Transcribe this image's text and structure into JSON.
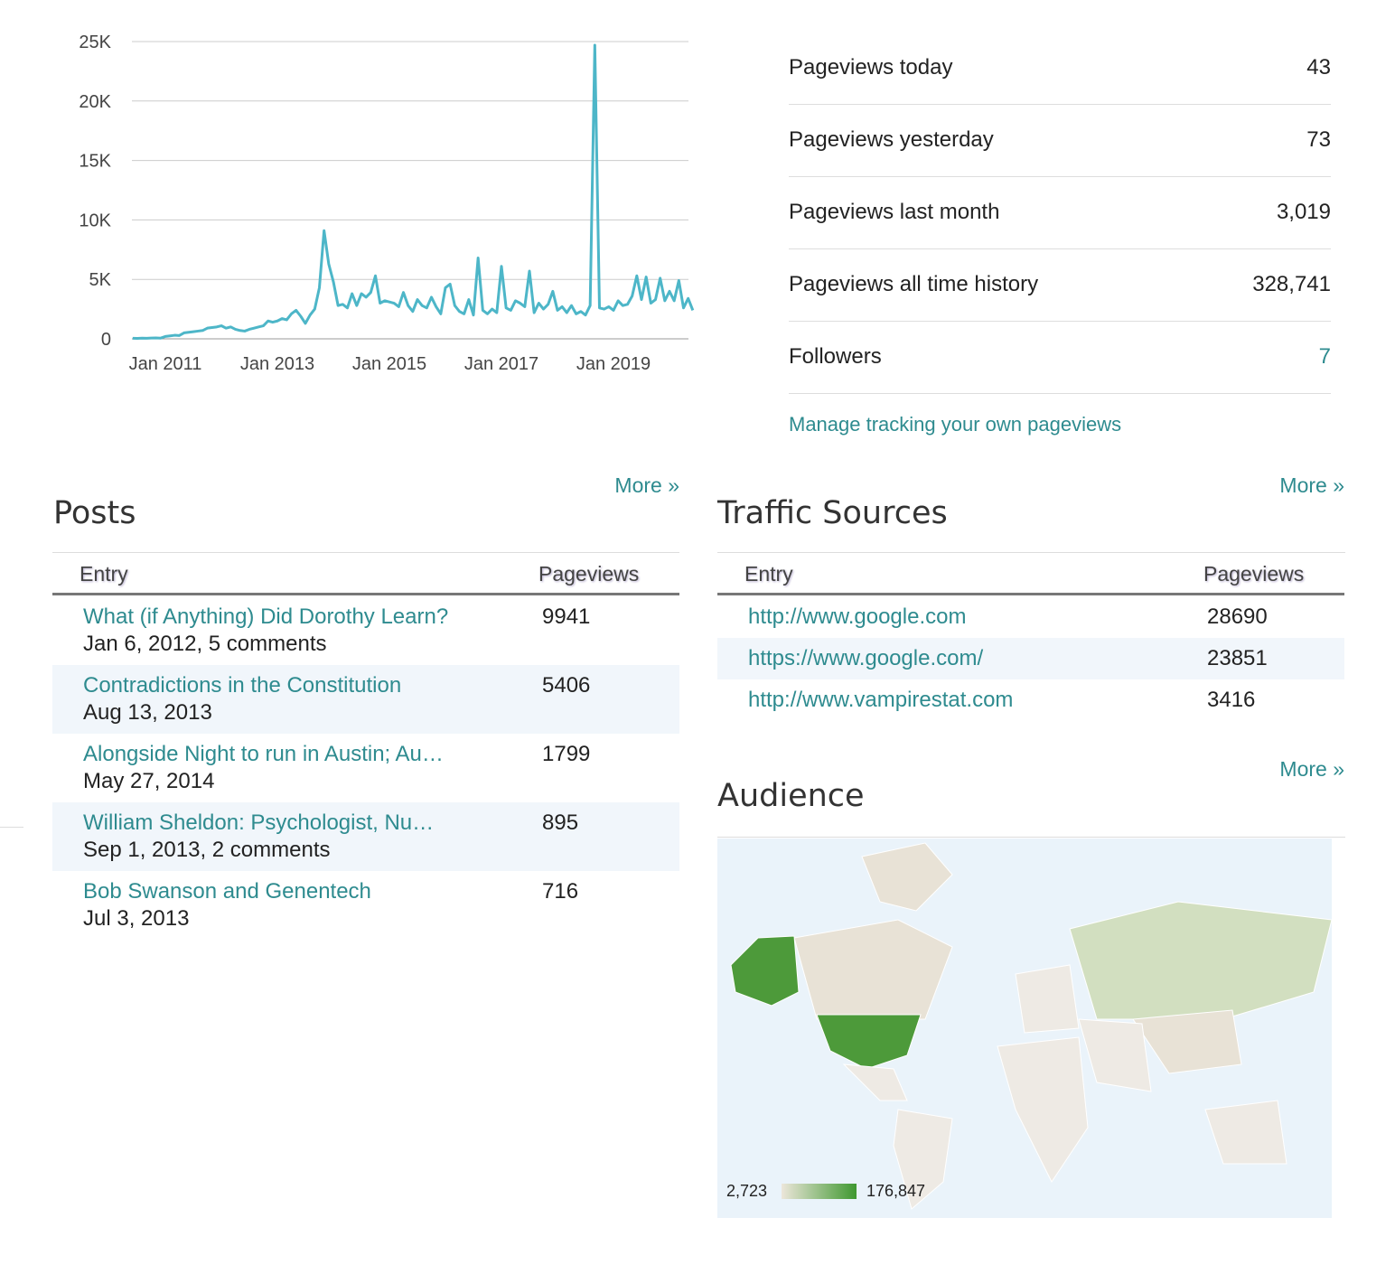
{
  "chart_data": {
    "type": "line",
    "x": [
      "2010-06",
      "2010-07",
      "2010-08",
      "2010-09",
      "2010-10",
      "2010-11",
      "2010-12",
      "2011-01",
      "2011-02",
      "2011-03",
      "2011-04",
      "2011-05",
      "2011-06",
      "2011-07",
      "2011-08",
      "2011-09",
      "2011-10",
      "2011-11",
      "2011-12",
      "2012-01",
      "2012-02",
      "2012-03",
      "2012-04",
      "2012-05",
      "2012-06",
      "2012-07",
      "2012-08",
      "2012-09",
      "2012-10",
      "2012-11",
      "2012-12",
      "2013-01",
      "2013-02",
      "2013-03",
      "2013-04",
      "2013-05",
      "2013-06",
      "2013-07",
      "2013-08",
      "2013-09",
      "2013-10",
      "2013-11",
      "2013-12",
      "2014-01",
      "2014-02",
      "2014-03",
      "2014-04",
      "2014-05",
      "2014-06",
      "2014-07",
      "2014-08",
      "2014-09",
      "2014-10",
      "2014-11",
      "2014-12",
      "2015-01",
      "2015-02",
      "2015-03",
      "2015-04",
      "2015-05",
      "2015-06",
      "2015-07",
      "2015-08",
      "2015-09",
      "2015-10",
      "2015-11",
      "2015-12",
      "2016-01",
      "2016-02",
      "2016-03",
      "2016-04",
      "2016-05",
      "2016-06",
      "2016-07",
      "2016-08",
      "2016-09",
      "2016-10",
      "2016-11",
      "2016-12",
      "2017-01",
      "2017-02",
      "2017-03",
      "2017-04",
      "2017-05",
      "2017-06",
      "2017-07",
      "2017-08",
      "2017-09",
      "2017-10",
      "2017-11",
      "2017-12",
      "2018-01",
      "2018-02",
      "2018-03",
      "2018-04",
      "2018-05",
      "2018-06",
      "2018-07",
      "2018-08",
      "2018-09",
      "2018-10",
      "2018-11",
      "2018-12",
      "2019-01",
      "2019-02",
      "2019-03",
      "2019-04",
      "2019-05",
      "2019-06",
      "2019-07",
      "2019-08",
      "2019-09",
      "2019-10",
      "2019-11",
      "2019-12",
      "2020-01",
      "2020-02",
      "2020-03",
      "2020-04",
      "2020-05",
      "2020-06"
    ],
    "series": [
      {
        "color": "#4db6c8",
        "values": [
          50,
          40,
          60,
          50,
          70,
          80,
          60,
          200,
          250,
          300,
          280,
          500,
          550,
          600,
          650,
          700,
          900,
          950,
          1000,
          1100,
          900,
          1000,
          800,
          700,
          650,
          800,
          900,
          1000,
          1100,
          1500,
          1400,
          1500,
          1700,
          1600,
          2100,
          2400,
          1900,
          1300,
          2000,
          2500,
          4300,
          9100,
          6300,
          4800,
          2800,
          2900,
          2600,
          3800,
          2800,
          3800,
          3500,
          3900,
          5300,
          3000,
          3200,
          3100,
          3000,
          2700,
          3900,
          2800,
          2300,
          3300,
          2800,
          2600,
          3500,
          2700,
          2100,
          4300,
          4600,
          2800,
          2300,
          2100,
          3300,
          2000,
          6800,
          2400,
          2100,
          2500,
          2200,
          6100,
          2600,
          2400,
          3200,
          3000,
          2700,
          5700,
          2200,
          3000,
          2500,
          2900,
          4000,
          2400,
          2700,
          2200,
          2800,
          2100,
          2300,
          2000,
          2800,
          24700,
          2600,
          2500,
          2700,
          2400,
          3200,
          2800,
          2900,
          3600,
          5300,
          3300,
          5200,
          3000,
          3300,
          5100,
          3200,
          4000,
          3200,
          4900,
          2600,
          3400,
          2400
        ]
      }
    ],
    "ylim": [
      0,
      25000
    ],
    "yticks": [
      0,
      {
        "value": 5000,
        "label": "5K"
      },
      {
        "value": 10000,
        "label": "10K"
      },
      {
        "value": 15000,
        "label": "15K"
      },
      {
        "value": 20000,
        "label": "20K"
      },
      {
        "value": 25000,
        "label": "25K"
      }
    ],
    "xticks": [
      {
        "value": "2011-01",
        "label": "Jan 2011"
      },
      {
        "value": "2013-01",
        "label": "Jan 2013"
      },
      {
        "value": "2015-01",
        "label": "Jan 2015"
      },
      {
        "value": "2017-01",
        "label": "Jan 2017"
      },
      {
        "value": "2019-01",
        "label": "Jan 2019"
      }
    ],
    "grid": true
  },
  "stats": {
    "rows": [
      [
        "Pageviews today",
        "43"
      ],
      [
        "Pageviews yesterday",
        "73"
      ],
      [
        "Pageviews last month",
        "3,019"
      ],
      [
        "Pageviews all time history",
        "328,741"
      ],
      [
        "Followers",
        "7"
      ]
    ],
    "manage_link": "Manage tracking your own pageviews"
  },
  "posts": {
    "title": "Posts",
    "more": "More »",
    "columns": [
      "Entry",
      "Pageviews"
    ],
    "rows": [
      [
        "What (if Anything) Did Dorothy Learn?",
        "Jan 6, 2012, 5 comments",
        "9941"
      ],
      [
        "Contradictions in the Constitution",
        "Aug 13, 2013",
        "5406"
      ],
      [
        "Alongside Night to run in Austin; Au…",
        "May 27, 2014",
        "1799"
      ],
      [
        "William Sheldon: Psychologist, Nu…",
        "Sep 1, 2013, 2 comments",
        "895"
      ],
      [
        "Bob Swanson and Genentech",
        "Jul 3, 2013",
        "716"
      ]
    ]
  },
  "traffic": {
    "title": "Traffic Sources",
    "more": "More »",
    "columns": [
      "Entry",
      "Pageviews"
    ],
    "rows": [
      [
        "http://www.google.com",
        "28690"
      ],
      [
        "https://www.google.com/",
        "23851"
      ],
      [
        "http://www.vampirestat.com",
        "3416"
      ]
    ]
  },
  "audience": {
    "title": "Audience",
    "more": "More »",
    "legend_min": "2,723",
    "legend_max": "176,847"
  }
}
